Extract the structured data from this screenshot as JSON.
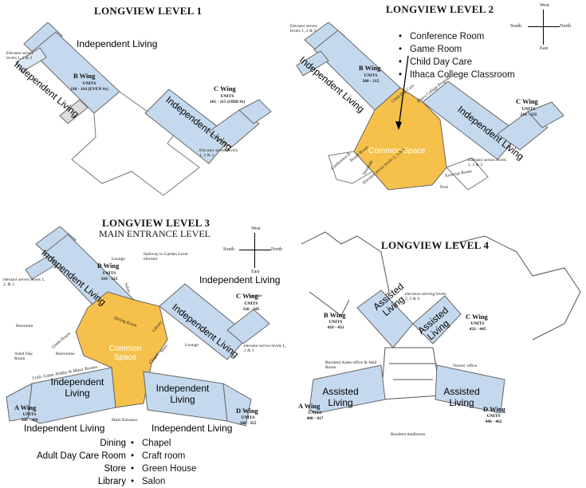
{
  "level1": {
    "title": "LONGVIEW LEVEL 1",
    "labels": {
      "independent_top": "Independent Living",
      "independent_b": "Independent Living",
      "independent_c": "Independent Living"
    },
    "b_wing": {
      "name": "B Wing",
      "units_label": "UNITS",
      "units": "110 - 116 (EVEN #s)"
    },
    "c_wing": {
      "name": "C Wing",
      "units_label": "UNITS",
      "units": "101 - 115 (ODD #s)"
    },
    "elevator_b": "Elevator serves levels 1, 2 & 3",
    "elevator_c": "Elevator serves levels 1, 2 & 3"
  },
  "level2": {
    "title": "LONGVIEW LEVEL 2",
    "compass": {
      "north": "North",
      "south": "South",
      "east": "East",
      "west": "West"
    },
    "bullets": [
      "Conference Room",
      "Game Room",
      "Child Day Care",
      "Ithaca College Classroom"
    ],
    "labels": {
      "independent_b": "Independent Living",
      "independent_c": "Independent Living",
      "common": "Common Space"
    },
    "b_wing": {
      "name": "B Wing",
      "units_label": "UNITS",
      "units": "200 - 215"
    },
    "c_wing": {
      "name": "C Wing",
      "units_label": "UNITS",
      "units": "216 - 235"
    },
    "elevator_b": "Elevator serves levels 1, 2 & 3",
    "elevator_c": "Elevator serves levels 1, 2 & 3",
    "elevator_mid": "Elevator serves levels 2, 3 & 4",
    "small_labels": [
      "Child Day Care",
      "Ithaca College Program",
      "Conference B",
      "Board Room",
      "Vestibule",
      "Exercise Room",
      "Pool"
    ]
  },
  "level3": {
    "title": "LONGVIEW LEVEL 3",
    "subtitle": "MAIN ENTRANCE LEVEL",
    "compass": {
      "north": "North",
      "south": "South",
      "east": "East",
      "west": "West"
    },
    "labels": {
      "independent_b": "Independent Living",
      "independent_c_top": "Independent Living",
      "independent_c": "Independent Living",
      "independent_a": "Independent Living",
      "independent_a_below": "Independent Living",
      "independent_d": "Independent Living",
      "independent_d_below": "Independent Living",
      "common": "Common Space"
    },
    "b_wing": {
      "name": "B Wing",
      "units_label": "UNITS",
      "units": "310 - 325"
    },
    "c_wing": {
      "name": "C Wing",
      "units_label": "UNITS",
      "units": "326 - 345"
    },
    "a_wing": {
      "name": "A Wing",
      "units_label": "UNITS",
      "units": "300 - 309"
    },
    "d_wing": {
      "name": "D Wing",
      "units_label": "UNITS",
      "units": "346 - 355"
    },
    "small_labels": {
      "lounge_b": "Lounge",
      "lounge_c": "Lounge",
      "lounge_mid": "Lounge",
      "elevator_b": "elevator serves levels 1, 2, & 3",
      "elevator_c": "elevator serves levels 1, 2 & 3",
      "hallway": "Hallway to Garden Level elevator",
      "restroom": "Restroom",
      "restrooms": "Restrooms",
      "green_house": "Green House",
      "adult_day": "Adult Day Room",
      "craft": "Craft, Game, Hobby & Music Rooms",
      "main_entrance": "Main Entrance",
      "dining": "Dining Room",
      "library": "Library",
      "store": "Store",
      "chapel": "Chapel",
      "salon": "Salon"
    },
    "left_list": [
      "Dining",
      "Adult Day Care Room",
      "Store",
      "Library"
    ],
    "right_list": [
      "Chapel",
      "Craft room",
      "Green House",
      "Salon"
    ]
  },
  "level4": {
    "title": "LONGVIEW LEVEL 4",
    "labels": {
      "assisted_b": "Assisted Living",
      "assisted_c": "Assisted Living",
      "assisted_a": "Assisted Living",
      "assisted_d": "Assisted Living"
    },
    "b_wing": {
      "name": "B Wing",
      "units_label": "UNITS",
      "units": "418 - 431"
    },
    "c_wing": {
      "name": "C Wing",
      "units_label": "UNITS",
      "units": "432 - 445"
    },
    "a_wing": {
      "name": "A Wing",
      "units_label": "UNITS",
      "units": "400 - 417"
    },
    "d_wing": {
      "name": "D Wing",
      "units_label": "UNITS",
      "units": "446 - 462"
    },
    "small_labels": {
      "elevators": "elevators serving levels 2, 3 & 4",
      "resident_aides": "Resident Aides office & Mail Room",
      "nurses": "Nurses' office",
      "mailboxes": "Resident mailboxes"
    }
  },
  "colors": {
    "wing_fill": "#c5d9ee",
    "common_fill": "#f5c14a",
    "outline": "#6b6b6b"
  }
}
